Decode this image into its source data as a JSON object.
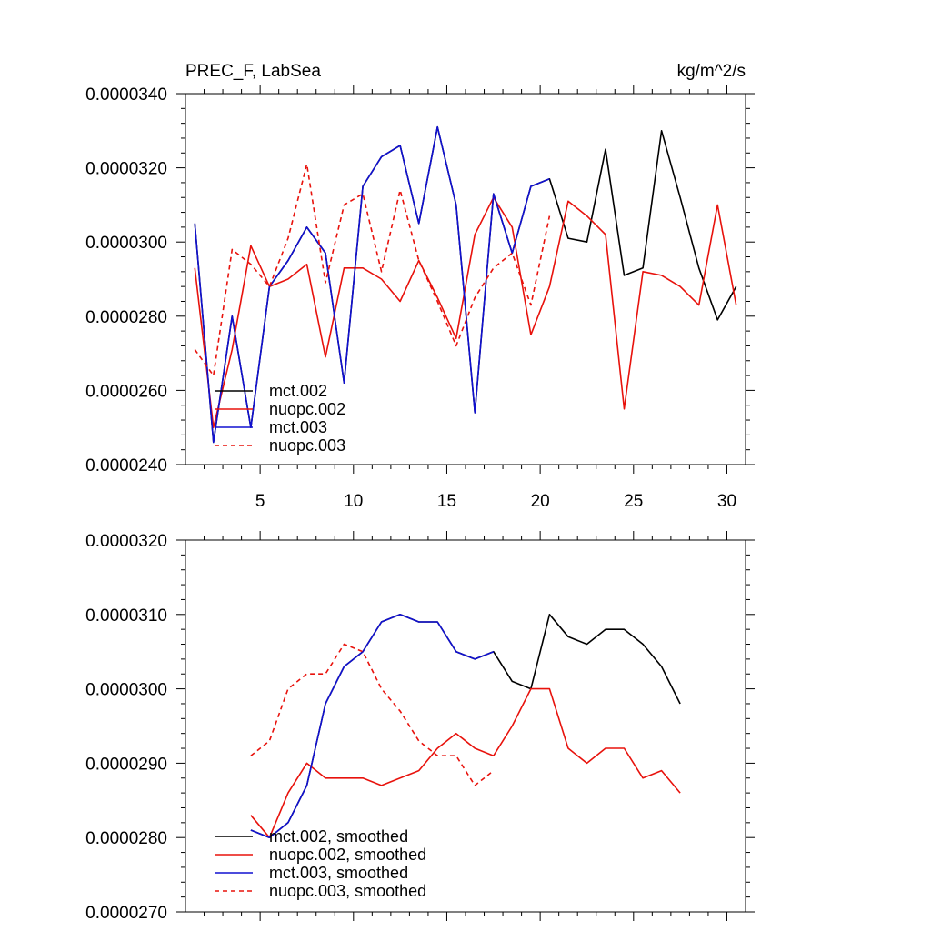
{
  "colors": {
    "mct002": "#000000",
    "nuopc002": "#e8120c",
    "mct003": "#1010d0",
    "nuopc003": "#e8120c"
  },
  "chart_data": [
    {
      "type": "line",
      "title": "PREC_F, LabSea",
      "units": "kg/m^2/s",
      "xlim": [
        1,
        31
      ],
      "ylim": [
        2.4e-05,
        3.4e-05
      ],
      "xticks": [
        5,
        10,
        15,
        20,
        25,
        30
      ],
      "xtick_labels": [
        "5",
        "10",
        "15",
        "20",
        "25",
        "30"
      ],
      "yticks": [
        2.4e-05,
        2.6e-05,
        2.8e-05,
        3e-05,
        3.2e-05,
        3.4e-05
      ],
      "ytick_labels": [
        "0.0000240",
        "0.0000260",
        "0.0000280",
        "0.0000300",
        "0.0000320",
        "0.0000340"
      ],
      "legend_position": "bottom-left",
      "series": [
        {
          "name": "mct.002",
          "key": "mct002",
          "dashed": false,
          "x": [
            1.5,
            2.5,
            3.5,
            4.5,
            5.5,
            6.5,
            7.5,
            8.5,
            9.5,
            10.5,
            11.5,
            12.5,
            13.5,
            14.5,
            15.5,
            16.5,
            17.5,
            18.5,
            19.5,
            20.5,
            21.5,
            22.5,
            23.5,
            24.5,
            25.5,
            26.5,
            27.5,
            28.5,
            29.5,
            30.5
          ],
          "values": [
            3.05e-05,
            2.46e-05,
            2.8e-05,
            2.5e-05,
            2.88e-05,
            2.95e-05,
            3.04e-05,
            2.97e-05,
            2.62e-05,
            3.15e-05,
            3.23e-05,
            3.26e-05,
            3.05e-05,
            3.31e-05,
            3.1e-05,
            2.54e-05,
            3.13e-05,
            2.97e-05,
            3.15e-05,
            3.17e-05,
            3.01e-05,
            3e-05,
            3.25e-05,
            2.91e-05,
            2.93e-05,
            3.3e-05,
            3.12e-05,
            2.93e-05,
            2.79e-05,
            2.88e-05
          ]
        },
        {
          "name": "nuopc.002",
          "key": "nuopc002",
          "dashed": false,
          "x": [
            1.5,
            2.5,
            3.5,
            4.5,
            5.5,
            6.5,
            7.5,
            8.5,
            9.5,
            10.5,
            11.5,
            12.5,
            13.5,
            14.5,
            15.5,
            16.5,
            17.5,
            18.5,
            19.5,
            20.5,
            21.5,
            22.5,
            23.5,
            24.5,
            25.5,
            26.5,
            27.5,
            28.5,
            29.5,
            30.5
          ],
          "values": [
            2.93e-05,
            2.5e-05,
            2.71e-05,
            2.99e-05,
            2.88e-05,
            2.9e-05,
            2.94e-05,
            2.69e-05,
            2.93e-05,
            2.93e-05,
            2.9e-05,
            2.84e-05,
            2.95e-05,
            2.85e-05,
            2.74e-05,
            3.02e-05,
            3.12e-05,
            3.04e-05,
            2.75e-05,
            2.88e-05,
            3.11e-05,
            3.07e-05,
            3.02e-05,
            2.55e-05,
            2.92e-05,
            2.91e-05,
            2.88e-05,
            2.83e-05,
            3.1e-05,
            2.83e-05
          ]
        },
        {
          "name": "mct.003",
          "key": "mct003",
          "dashed": false,
          "x": [
            1.5,
            2.5,
            3.5,
            4.5,
            5.5,
            6.5,
            7.5,
            8.5,
            9.5,
            10.5,
            11.5,
            12.5,
            13.5,
            14.5,
            15.5,
            16.5,
            17.5,
            18.5,
            19.5,
            20.5
          ],
          "values": [
            3.05e-05,
            2.46e-05,
            2.8e-05,
            2.5e-05,
            2.88e-05,
            2.95e-05,
            3.04e-05,
            2.97e-05,
            2.62e-05,
            3.15e-05,
            3.23e-05,
            3.26e-05,
            3.05e-05,
            3.31e-05,
            3.1e-05,
            2.54e-05,
            3.13e-05,
            2.97e-05,
            3.15e-05,
            3.17e-05
          ]
        },
        {
          "name": "nuopc.003",
          "key": "nuopc003",
          "dashed": true,
          "x": [
            1.5,
            2.5,
            3.5,
            4.5,
            5.5,
            6.5,
            7.5,
            8.5,
            9.5,
            10.5,
            11.5,
            12.5,
            13.5,
            14.5,
            15.5,
            16.5,
            17.5,
            18.5,
            19.5,
            20.5
          ],
          "values": [
            2.71e-05,
            2.64e-05,
            2.98e-05,
            2.94e-05,
            2.88e-05,
            3.01e-05,
            3.21e-05,
            2.89e-05,
            3.1e-05,
            3.13e-05,
            2.92e-05,
            3.14e-05,
            2.95e-05,
            2.84e-05,
            2.72e-05,
            2.85e-05,
            2.93e-05,
            2.97e-05,
            2.83e-05,
            3.07e-05
          ]
        }
      ]
    },
    {
      "type": "line",
      "title": "",
      "xlim": [
        1,
        31
      ],
      "ylim": [
        2.7e-05,
        3.2e-05
      ],
      "xticks": [],
      "xtick_labels": [],
      "yticks": [
        2.7e-05,
        2.8e-05,
        2.9e-05,
        3e-05,
        3.1e-05,
        3.2e-05
      ],
      "ytick_labels": [
        "0.0000270",
        "0.0000280",
        "0.0000290",
        "0.0000300",
        "0.0000310",
        "0.0000320"
      ],
      "legend_position": "bottom-left",
      "series": [
        {
          "name": "mct.002, smoothed",
          "key": "mct002",
          "dashed": false,
          "x": [
            4.5,
            5.5,
            6.5,
            7.5,
            8.5,
            9.5,
            10.5,
            11.5,
            12.5,
            13.5,
            14.5,
            15.5,
            16.5,
            17.5,
            18.5,
            19.5,
            20.5,
            21.5,
            22.5,
            23.5,
            24.5,
            25.5,
            26.5,
            27.5
          ],
          "values": [
            2.81e-05,
            2.8e-05,
            2.82e-05,
            2.87e-05,
            2.98e-05,
            3.03e-05,
            3.05e-05,
            3.09e-05,
            3.1e-05,
            3.09e-05,
            3.09e-05,
            3.05e-05,
            3.04e-05,
            3.05e-05,
            3.01e-05,
            3e-05,
            3.1e-05,
            3.07e-05,
            3.06e-05,
            3.08e-05,
            3.08e-05,
            3.06e-05,
            3.03e-05,
            2.98e-05
          ]
        },
        {
          "name": "nuopc.002, smoothed",
          "key": "nuopc002",
          "dashed": false,
          "x": [
            4.5,
            5.5,
            6.5,
            7.5,
            8.5,
            9.5,
            10.5,
            11.5,
            12.5,
            13.5,
            14.5,
            15.5,
            16.5,
            17.5,
            18.5,
            19.5,
            20.5,
            21.5,
            22.5,
            23.5,
            24.5,
            25.5,
            26.5,
            27.5
          ],
          "values": [
            2.83e-05,
            2.8e-05,
            2.86e-05,
            2.9e-05,
            2.88e-05,
            2.88e-05,
            2.88e-05,
            2.87e-05,
            2.88e-05,
            2.89e-05,
            2.92e-05,
            2.94e-05,
            2.92e-05,
            2.91e-05,
            2.95e-05,
            3e-05,
            3e-05,
            2.92e-05,
            2.9e-05,
            2.92e-05,
            2.92e-05,
            2.88e-05,
            2.89e-05,
            2.86e-05
          ]
        },
        {
          "name": "mct.003, smoothed",
          "key": "mct003",
          "dashed": false,
          "x": [
            4.5,
            5.5,
            6.5,
            7.5,
            8.5,
            9.5,
            10.5,
            11.5,
            12.5,
            13.5,
            14.5,
            15.5,
            16.5,
            17.5
          ],
          "values": [
            2.81e-05,
            2.8e-05,
            2.82e-05,
            2.87e-05,
            2.98e-05,
            3.03e-05,
            3.05e-05,
            3.09e-05,
            3.1e-05,
            3.09e-05,
            3.09e-05,
            3.05e-05,
            3.04e-05,
            3.05e-05
          ]
        },
        {
          "name": "nuopc.003, smoothed",
          "key": "nuopc003",
          "dashed": true,
          "x": [
            4.5,
            5.5,
            6.5,
            7.5,
            8.5,
            9.5,
            10.5,
            11.5,
            12.5,
            13.5,
            14.5,
            15.5,
            16.5,
            17.5
          ],
          "values": [
            2.91e-05,
            2.93e-05,
            3e-05,
            3.02e-05,
            3.02e-05,
            3.06e-05,
            3.05e-05,
            3e-05,
            2.97e-05,
            2.93e-05,
            2.91e-05,
            2.91e-05,
            2.87e-05,
            2.89e-05
          ]
        }
      ]
    }
  ]
}
